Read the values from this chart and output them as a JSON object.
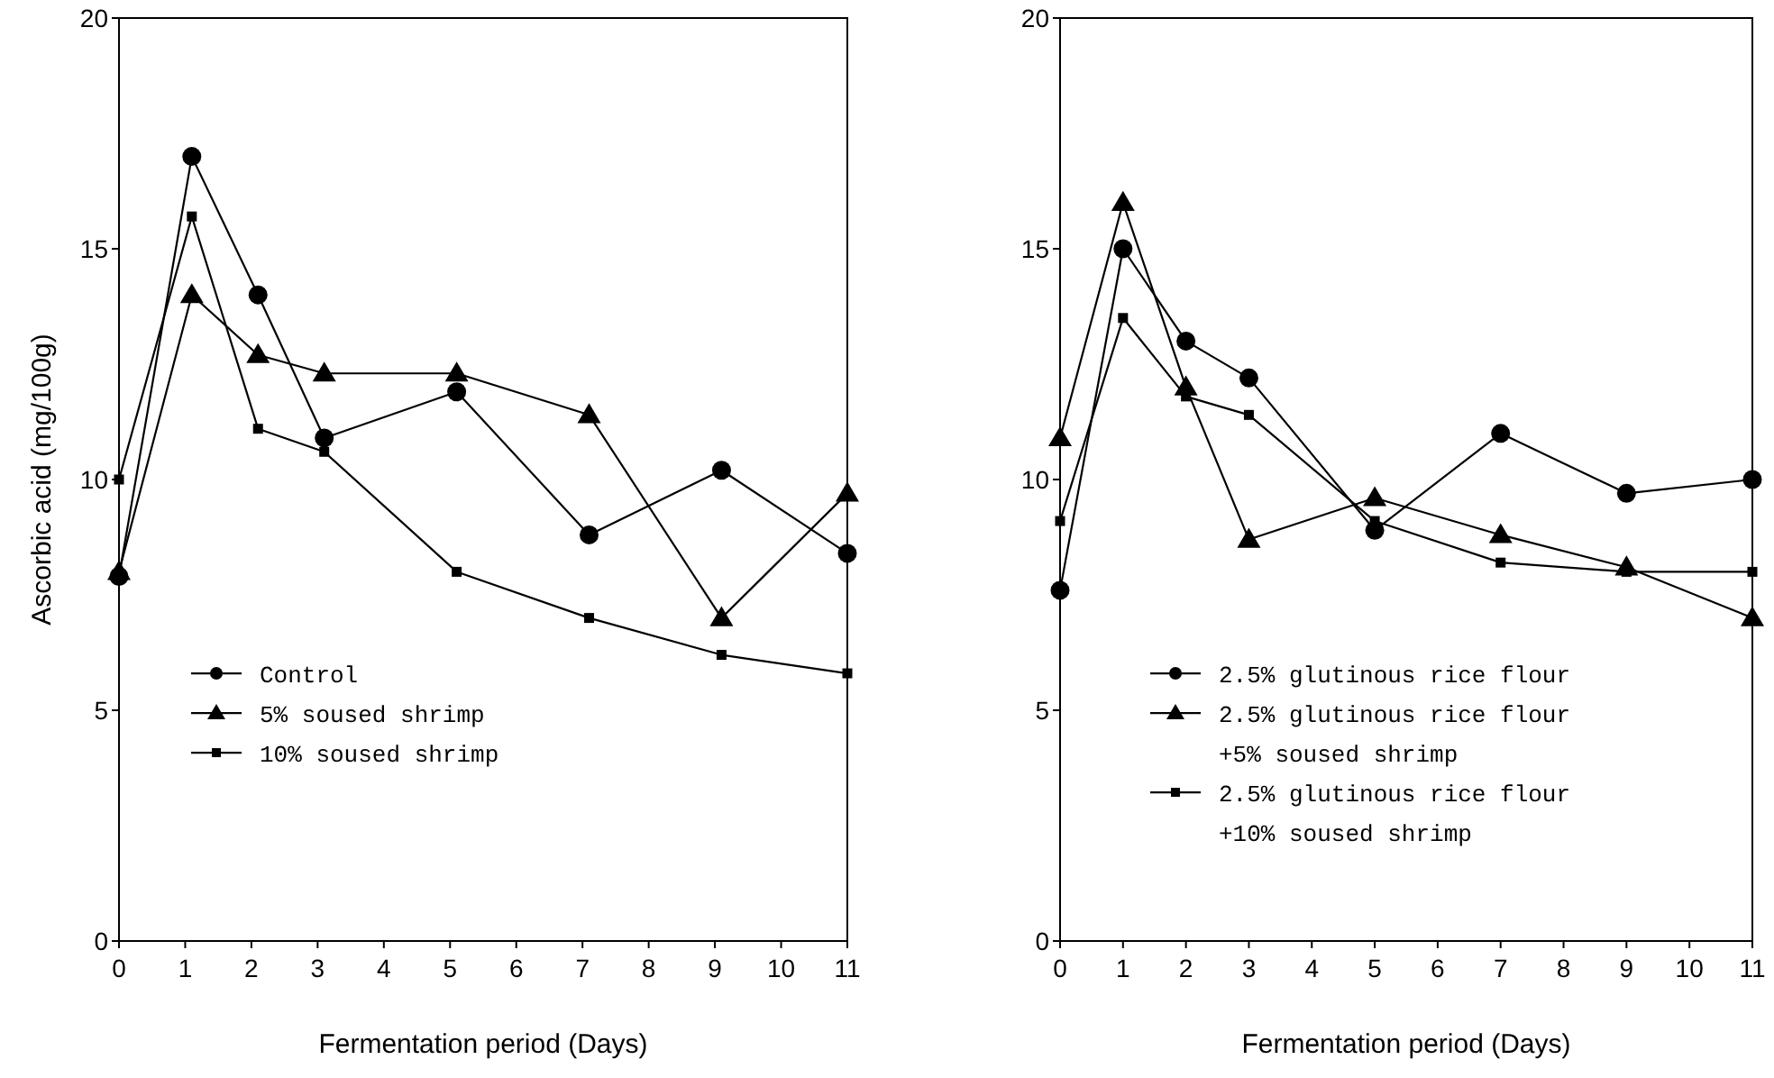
{
  "chart_data": [
    {
      "type": "line",
      "xlabel": "Fermentation period (Days)",
      "ylabel": "Ascorbic acid (mg/100g)",
      "xlim": [
        0,
        11
      ],
      "xticks": [
        0,
        1,
        2,
        3,
        4,
        5,
        6,
        7,
        8,
        9,
        10,
        11
      ],
      "ylim": [
        0,
        20
      ],
      "yticks": [
        0,
        5,
        10,
        15,
        20
      ],
      "legend": "bottom left",
      "grid": false,
      "series": [
        {
          "name": "Control",
          "color": "#000000",
          "marker": "circle",
          "x": [
            0,
            1.1,
            2.1,
            3.1,
            5.1,
            7.1,
            9.1,
            11
          ],
          "values": [
            7.9,
            17.0,
            14.0,
            10.9,
            11.9,
            8.8,
            10.2,
            8.4
          ]
        },
        {
          "name": "5% soused shrimp",
          "color": "#000000",
          "marker": "triangle",
          "x": [
            0,
            1.1,
            2.1,
            3.1,
            5.1,
            7.1,
            9.1,
            11
          ],
          "values": [
            8.0,
            14.0,
            12.7,
            12.3,
            12.3,
            11.4,
            7.0,
            9.7
          ]
        },
        {
          "name": "10% soused shrimp",
          "color": "#000000",
          "marker": "square",
          "x": [
            0,
            1.1,
            2.1,
            3.1,
            5.1,
            7.1,
            9.1,
            11
          ],
          "values": [
            10.0,
            15.7,
            11.1,
            10.6,
            8.0,
            7.0,
            6.2,
            5.8
          ]
        }
      ]
    },
    {
      "type": "line",
      "xlabel": "Fermentation period (Days)",
      "xlim": [
        0,
        11
      ],
      "xticks": [
        0,
        1,
        2,
        3,
        4,
        5,
        6,
        7,
        8,
        9,
        10,
        11
      ],
      "ylim": [
        0,
        20
      ],
      "yticks": [
        0,
        5,
        10,
        15,
        20
      ],
      "legend": "bottom",
      "grid": false,
      "series": [
        {
          "name": "2.5% glutinous rice flour",
          "color": "#000000",
          "marker": "circle",
          "x": [
            0,
            1,
            2,
            3,
            5,
            7,
            9,
            11
          ],
          "values": [
            7.6,
            15.0,
            13.0,
            12.2,
            8.9,
            11.0,
            9.7,
            10.0
          ]
        },
        {
          "name": "2.5% glutinous rice flour +5% soused shrimp",
          "color": "#000000",
          "marker": "triangle",
          "x": [
            0,
            1,
            2,
            3,
            5,
            7,
            9,
            11
          ],
          "values": [
            10.9,
            16.0,
            12.0,
            8.7,
            9.6,
            8.8,
            8.1,
            7.0
          ]
        },
        {
          "name": "2.5% glutinous rice flour +10% soused shrimp",
          "color": "#000000",
          "marker": "square",
          "x": [
            0,
            1,
            2,
            3,
            5,
            7,
            9,
            11
          ],
          "values": [
            9.1,
            13.5,
            11.8,
            11.4,
            9.1,
            8.2,
            8.0,
            8.0
          ]
        }
      ]
    }
  ]
}
